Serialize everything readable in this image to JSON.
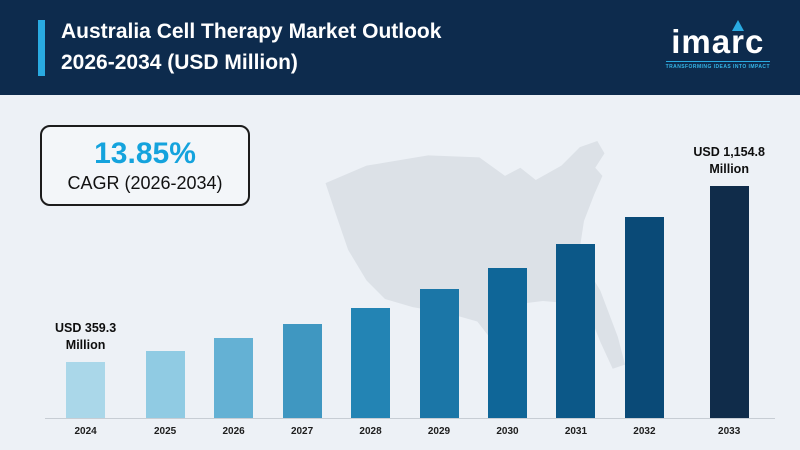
{
  "header": {
    "title_line1": "Australia Cell Therapy Market Outlook",
    "title_line2": "2026-2034 (USD Million)",
    "logo_text": "imarc",
    "tagline": "TRANSFORMING IDEAS INTO IMPACT",
    "background_color": "#0d2b4d",
    "accent_color": "#29aae1"
  },
  "cagr": {
    "value": "13.85%",
    "label": "CAGR (2026-2034)"
  },
  "chart_data": {
    "type": "bar",
    "title": "Australia Cell Therapy Market Outlook 2026-2034 (USD Million)",
    "unit": "USD Million",
    "categories": [
      "2024",
      "2025",
      "2026",
      "2027",
      "2028",
      "2029",
      "2030",
      "2031",
      "2032",
      "2033"
    ],
    "values": [
      359.3,
      409.1,
      465.7,
      530.2,
      603.7,
      687.3,
      782.5,
      890.9,
      1014.3,
      1154.8
    ],
    "annotations": [
      {
        "index": 0,
        "text": "USD 359.3\nMillion"
      },
      {
        "index": 9,
        "text": "USD 1,154.8\nMillion"
      }
    ],
    "bar_colors": [
      "#aad7e9",
      "#90cbe3",
      "#64b1d4",
      "#3f97c1",
      "#2384b4",
      "#1b76a7",
      "#0f6698",
      "#0c5888",
      "#0a4a77",
      "#102c4a"
    ],
    "xlabel": "",
    "ylabel": "",
    "ylim": [
      0,
      1250
    ],
    "grid": false,
    "legend": false
  }
}
